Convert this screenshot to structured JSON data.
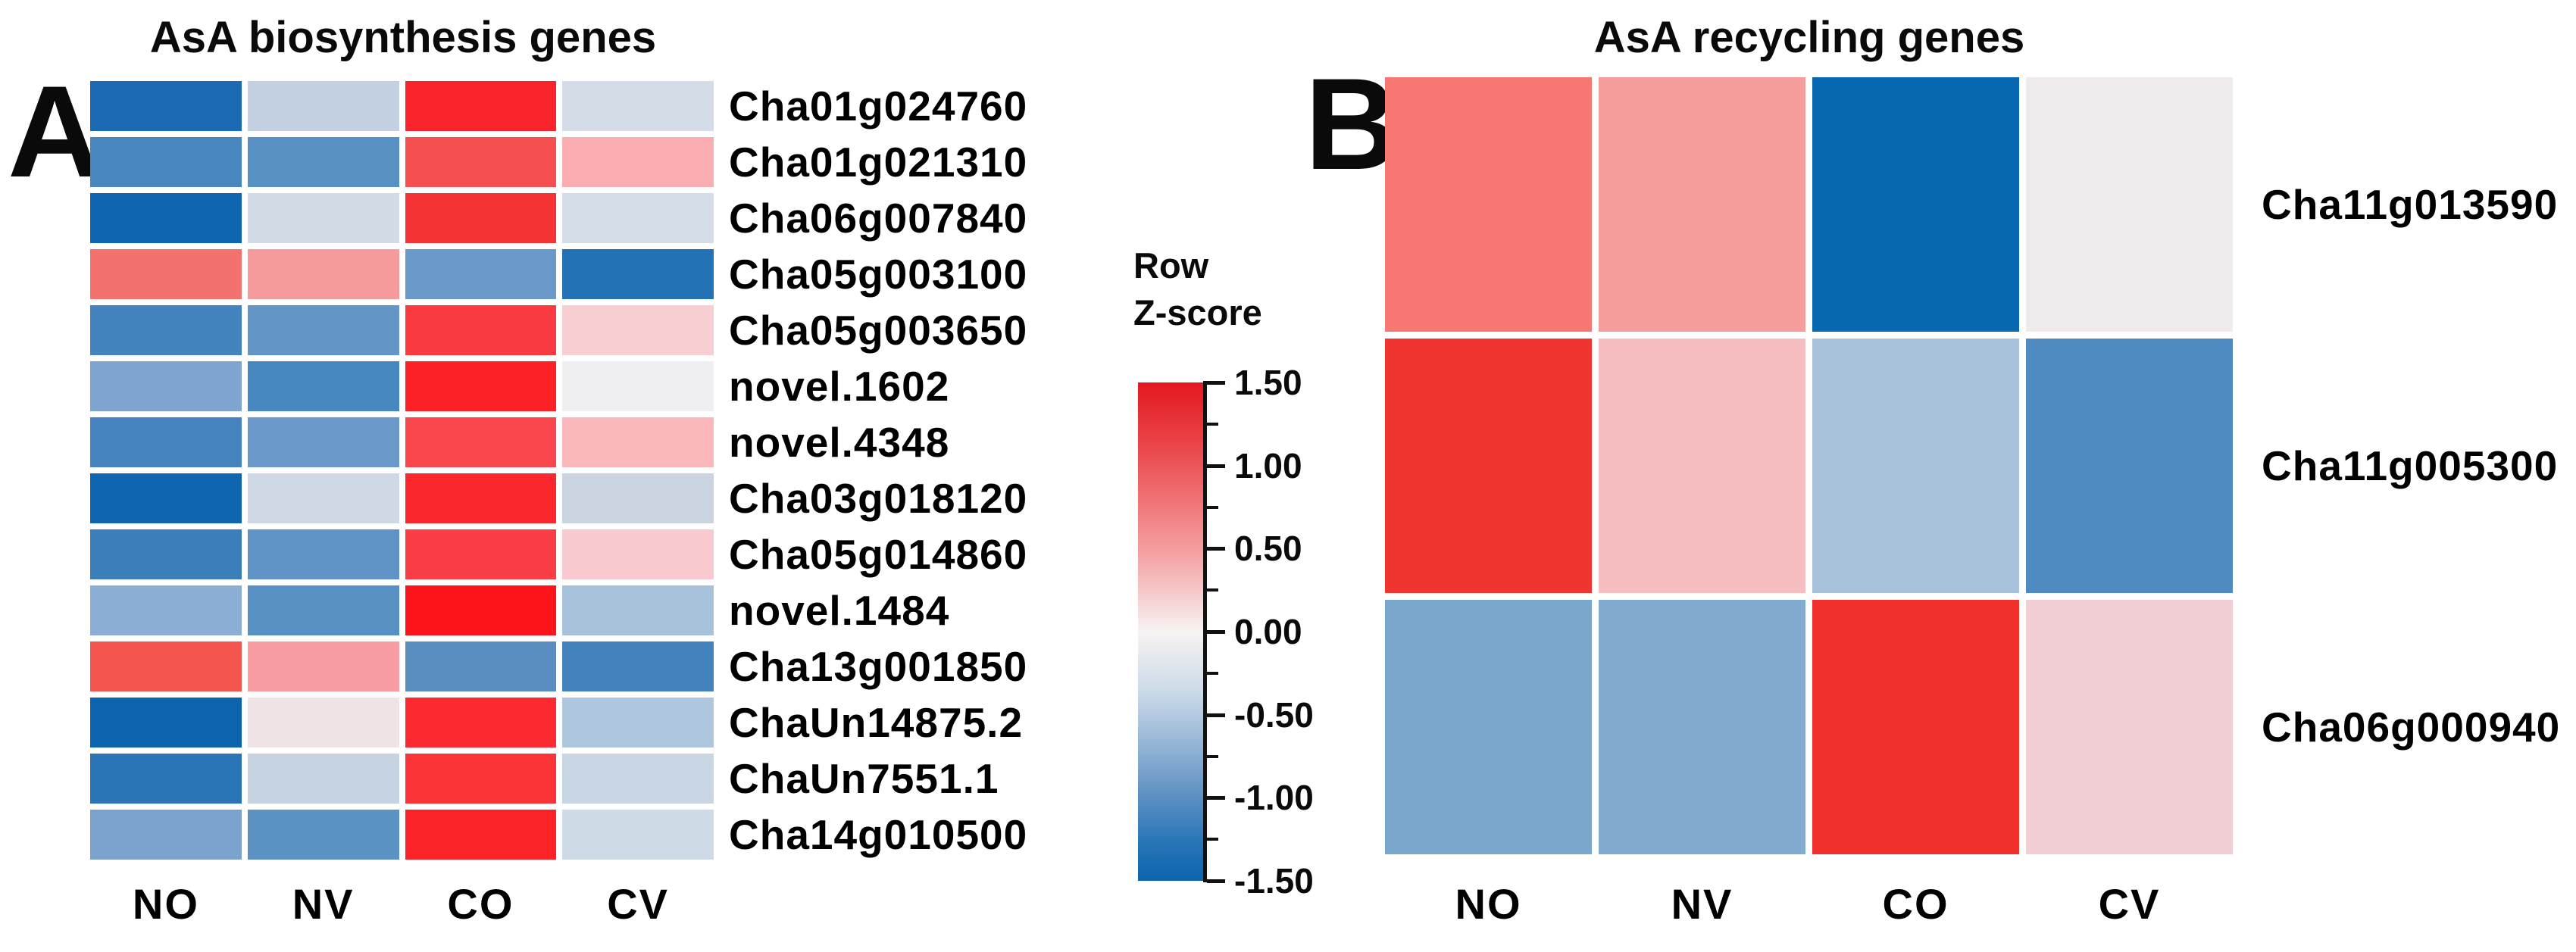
{
  "panels": [
    {
      "label": "A",
      "title": "AsA biosynthesis genes"
    },
    {
      "label": "B",
      "title": "AsA recycling genes"
    }
  ],
  "legend": {
    "title_line1": "Row",
    "title_line2": "Z-score",
    "tick_labels": [
      "1.50",
      "1.00",
      "0.50",
      "0.00",
      "-0.50",
      "-1.00",
      "-1.50"
    ],
    "max_color": "#e2191f",
    "mid_color": "#f7f7f7",
    "min_color": "#0b65ae"
  },
  "chart_data": [
    {
      "type": "heatmap",
      "title": "AsA biosynthesis genes",
      "columns": [
        "NO",
        "NV",
        "CO",
        "CV"
      ],
      "rows": [
        "Cha01g024760",
        "Cha01g021310",
        "Cha06g007840",
        "Cha05g003100",
        "Cha05g003650",
        "novel.1602",
        "novel.4348",
        "Cha03g018120",
        "Cha05g014860",
        "novel.1484",
        "Cha13g001850",
        "ChaUn14875.2",
        "ChaUn7551.1",
        "Cha14g010500"
      ],
      "colorscale": {
        "label": "Row Z-score",
        "min": -1.5,
        "max": 1.5,
        "min_color": "#0b65ae",
        "mid_color": "#f7f7f7",
        "max_color": "#e2191f"
      },
      "legend_position": "right",
      "values": [
        [
          -1.35,
          -0.45,
          1.4,
          -0.35
        ],
        [
          -0.95,
          -0.85,
          1.1,
          0.55
        ],
        [
          -1.45,
          -0.35,
          1.3,
          -0.33
        ],
        [
          1.05,
          0.7,
          -0.75,
          -1.3
        ],
        [
          -1.0,
          -0.8,
          1.2,
          0.3
        ],
        [
          -0.6,
          -0.95,
          1.45,
          0.03
        ],
        [
          -1.0,
          -0.75,
          1.1,
          0.45
        ],
        [
          -1.45,
          -0.4,
          1.4,
          -0.45
        ],
        [
          -1.05,
          -0.8,
          1.15,
          0.35
        ],
        [
          -0.5,
          -0.85,
          1.5,
          -0.65
        ],
        [
          1.1,
          0.7,
          -0.8,
          -1.0
        ],
        [
          -1.45,
          0.1,
          1.15,
          -0.6
        ],
        [
          -1.25,
          -0.45,
          1.3,
          -0.42
        ],
        [
          -0.62,
          -0.83,
          1.45,
          -0.38
        ]
      ],
      "cell_colors": [
        [
          "#1b6ab3",
          "#c3d1e2",
          "#f9232b",
          "#d3dce7"
        ],
        [
          "#4886be",
          "#5990c3",
          "#f5504f",
          "#faaeb1"
        ],
        [
          "#0d66af",
          "#d2dbe6",
          "#f43337",
          "#d5dee8"
        ],
        [
          "#f4726d",
          "#f59b9b",
          "#6a9aca",
          "#2272b5"
        ],
        [
          "#4484be",
          "#6396c7",
          "#f93b41",
          "#f7ced2"
        ],
        [
          "#7fa5cf",
          "#4787c0",
          "#fb2125",
          "#efeef0"
        ],
        [
          "#4584be",
          "#6b99c9",
          "#f9474d",
          "#fab8bc"
        ],
        [
          "#0f65af",
          "#cfd9e5",
          "#fa282c",
          "#cbd5e1"
        ],
        [
          "#3a7eba",
          "#5f93c5",
          "#f93f45",
          "#f8c9ce"
        ],
        [
          "#8caed4",
          "#5890c3",
          "#fb1419",
          "#a8c2db"
        ],
        [
          "#f4554f",
          "#fa9da3",
          "#5a8ec1",
          "#4382bc"
        ],
        [
          "#0c63ae",
          "#efe3e5",
          "#fb2a30",
          "#afc7de"
        ],
        [
          "#2b74b6",
          "#c6d4e2",
          "#fa3339",
          "#c9d6e3"
        ],
        [
          "#7ba2cd",
          "#5c92c3",
          "#fb2327",
          "#cedae6"
        ]
      ]
    },
    {
      "type": "heatmap",
      "title": "AsA recycling genes",
      "columns": [
        "NO",
        "NV",
        "CO",
        "CV"
      ],
      "rows": [
        "Cha11g013590",
        "Cha11g005300",
        "Cha06g000940"
      ],
      "colorscale": {
        "label": "Row Z-score",
        "min": -1.5,
        "max": 1.5,
        "min_color": "#0b65ae",
        "mid_color": "#f7f7f7",
        "max_color": "#e2191f"
      },
      "values": [
        [
          0.95,
          0.65,
          -1.5,
          0.05
        ],
        [
          1.4,
          0.4,
          -0.65,
          -1.0
        ],
        [
          -0.75,
          -0.7,
          1.35,
          0.3
        ]
      ],
      "cell_colors": [
        [
          "#f77772",
          "#f59d9b",
          "#0768b0",
          "#f0eced"
        ],
        [
          "#ee352f",
          "#f7bec1",
          "#a9c2dc",
          "#4e8bc0"
        ],
        [
          "#7ca7cc",
          "#82abd0",
          "#f2302b",
          "#f2cfd4"
        ]
      ]
    }
  ]
}
